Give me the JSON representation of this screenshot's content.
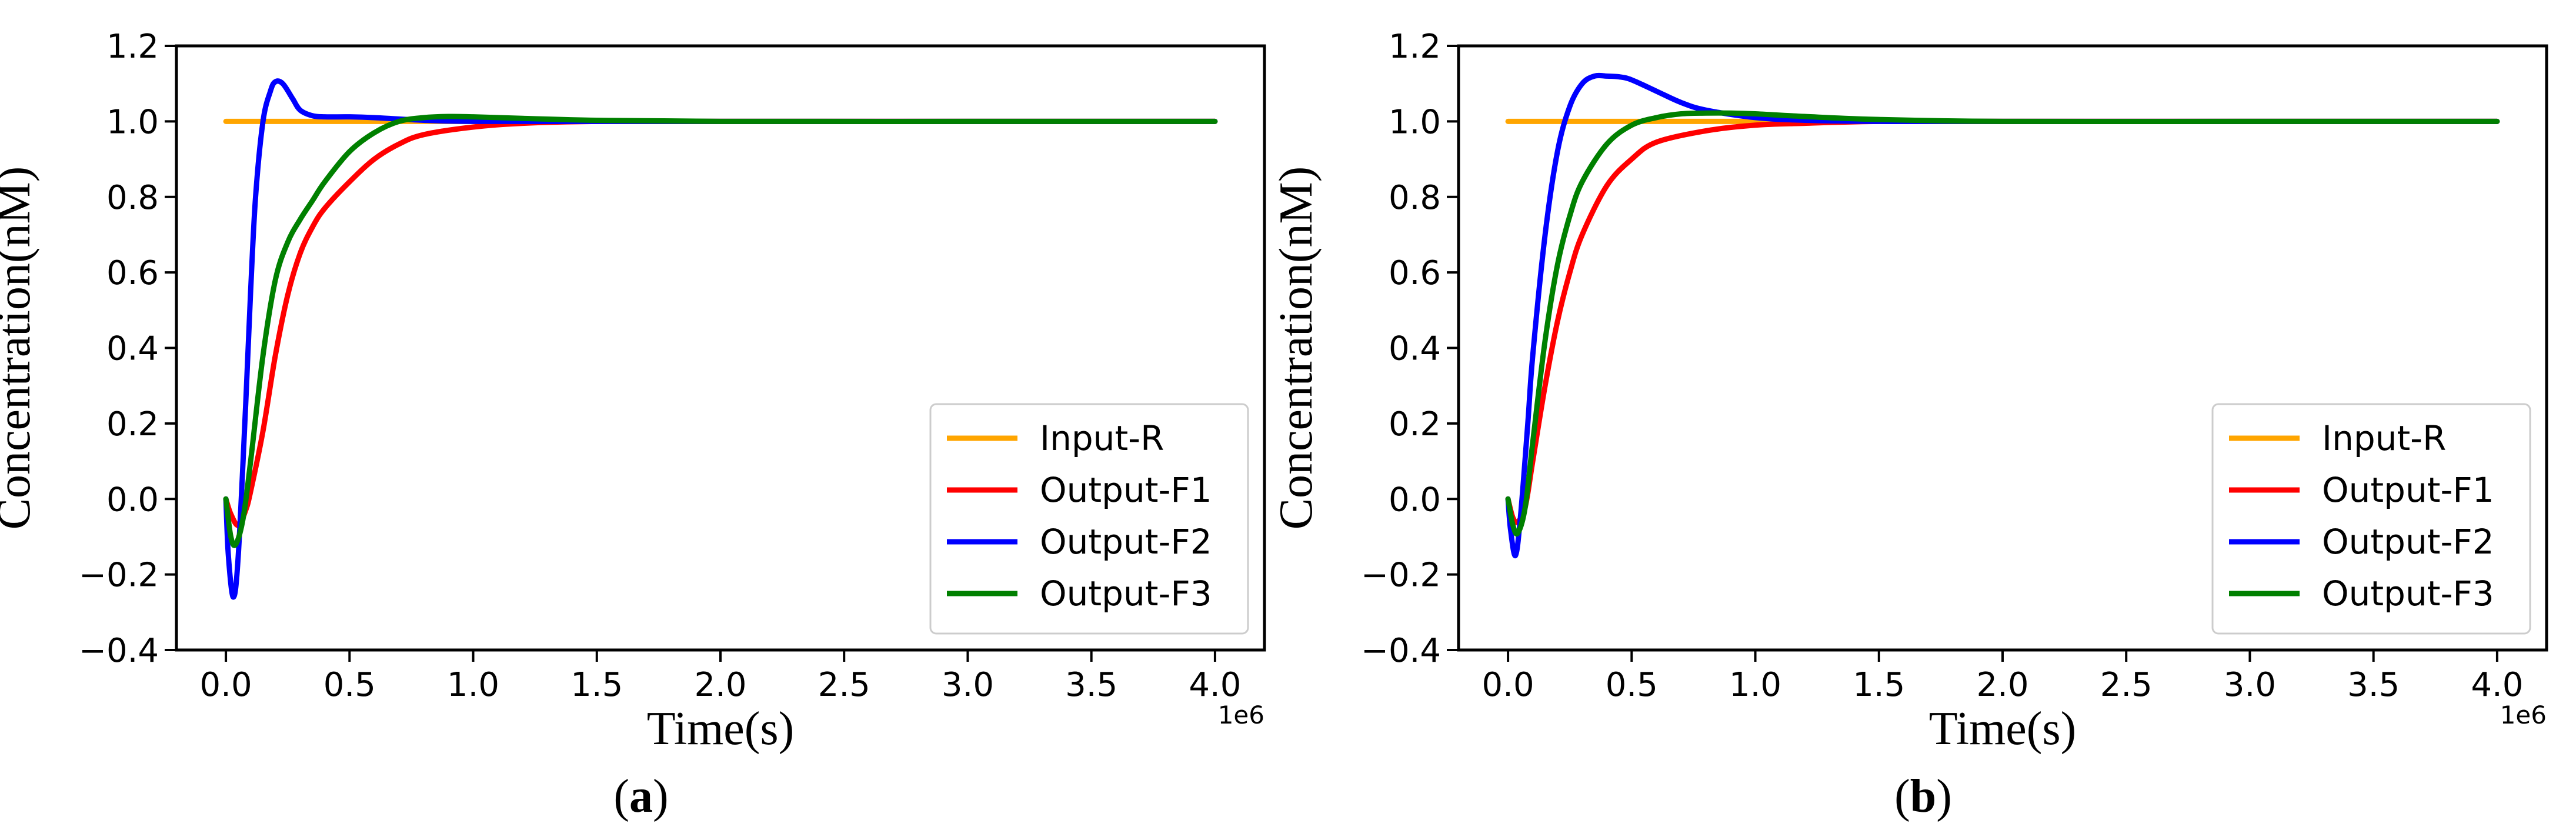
{
  "chart_data": [
    {
      "type": "line",
      "panel": "a",
      "caption_open": "(",
      "caption_letter": "a",
      "caption_close": ")",
      "xlabel": "Time(s)",
      "ylabel": "Concentration(nM)",
      "x_offset_label": "1e6",
      "xlim": [
        -0.2,
        4.2
      ],
      "ylim": [
        -0.4,
        1.2
      ],
      "xticks": [
        "0.0",
        "0.5",
        "1.0",
        "1.5",
        "2.0",
        "2.5",
        "3.0",
        "3.5",
        "4.0"
      ],
      "yticks": [
        "−0.4",
        "−0.2",
        "0.0",
        "0.2",
        "0.4",
        "0.6",
        "0.8",
        "1.0",
        "1.2"
      ],
      "legend_position": "lower-right",
      "series": [
        {
          "name": "Input-R",
          "color": "#FFA500",
          "x": [
            0.0,
            4.0
          ],
          "y": [
            1.0,
            1.0
          ]
        },
        {
          "name": "Output-F1",
          "color": "#FF0000",
          "x": [
            0.0,
            0.02,
            0.05,
            0.08,
            0.1,
            0.15,
            0.2,
            0.25,
            0.3,
            0.35,
            0.4,
            0.5,
            0.6,
            0.7,
            0.8,
            1.0,
            1.2,
            1.5,
            2.0,
            3.0,
            4.0
          ],
          "y": [
            0.0,
            -0.04,
            -0.07,
            -0.03,
            0.02,
            0.18,
            0.38,
            0.54,
            0.65,
            0.72,
            0.77,
            0.84,
            0.9,
            0.94,
            0.965,
            0.985,
            0.995,
            1.0,
            1.0,
            1.0,
            1.0
          ]
        },
        {
          "name": "Output-F2",
          "color": "#0000FF",
          "x": [
            0.0,
            0.01,
            0.03,
            0.05,
            0.08,
            0.1,
            0.12,
            0.15,
            0.18,
            0.2,
            0.23,
            0.27,
            0.3,
            0.35,
            0.4,
            0.5,
            0.6,
            0.8,
            1.0,
            1.5,
            2.0,
            3.0,
            4.0
          ],
          "y": [
            0.0,
            -0.15,
            -0.26,
            -0.15,
            0.25,
            0.55,
            0.8,
            1.0,
            1.08,
            1.105,
            1.1,
            1.06,
            1.03,
            1.015,
            1.012,
            1.012,
            1.01,
            1.003,
            1.0,
            1.0,
            1.0,
            1.0,
            1.0
          ]
        },
        {
          "name": "Output-F3",
          "color": "#008000",
          "x": [
            0.0,
            0.02,
            0.04,
            0.07,
            0.1,
            0.15,
            0.2,
            0.25,
            0.3,
            0.35,
            0.4,
            0.5,
            0.6,
            0.7,
            0.8,
            0.9,
            1.0,
            1.2,
            1.5,
            2.0,
            3.0,
            4.0
          ],
          "y": [
            0.0,
            -0.1,
            -0.12,
            -0.05,
            0.1,
            0.38,
            0.58,
            0.68,
            0.74,
            0.79,
            0.84,
            0.92,
            0.97,
            1.0,
            1.01,
            1.013,
            1.012,
            1.008,
            1.003,
            1.0,
            1.0,
            1.0
          ]
        }
      ]
    },
    {
      "type": "line",
      "panel": "b",
      "caption_open": "(",
      "caption_letter": "b",
      "caption_close": ")",
      "xlabel": "Time(s)",
      "ylabel": "Concentration(nM)",
      "x_offset_label": "1e6",
      "xlim": [
        -0.2,
        4.2
      ],
      "ylim": [
        -0.4,
        1.2
      ],
      "xticks": [
        "0.0",
        "0.5",
        "1.0",
        "1.5",
        "2.0",
        "2.5",
        "3.0",
        "3.5",
        "4.0"
      ],
      "yticks": [
        "−0.4",
        "−0.2",
        "0.0",
        "0.2",
        "0.4",
        "0.6",
        "0.8",
        "1.0",
        "1.2"
      ],
      "legend_position": "lower-right",
      "series": [
        {
          "name": "Input-R",
          "color": "#FFA500",
          "x": [
            0.0,
            4.0
          ],
          "y": [
            1.0,
            1.0
          ]
        },
        {
          "name": "Output-F1",
          "color": "#FF0000",
          "x": [
            0.0,
            0.02,
            0.04,
            0.07,
            0.1,
            0.15,
            0.2,
            0.25,
            0.3,
            0.4,
            0.5,
            0.6,
            0.8,
            1.0,
            1.2,
            1.5,
            2.0,
            3.0,
            4.0
          ],
          "y": [
            0.0,
            -0.05,
            -0.06,
            -0.02,
            0.1,
            0.3,
            0.47,
            0.6,
            0.7,
            0.83,
            0.9,
            0.945,
            0.975,
            0.99,
            0.995,
            1.0,
            1.0,
            1.0,
            1.0
          ]
        },
        {
          "name": "Output-F2",
          "color": "#0000FF",
          "x": [
            0.0,
            0.01,
            0.03,
            0.05,
            0.08,
            0.1,
            0.15,
            0.2,
            0.25,
            0.3,
            0.35,
            0.4,
            0.45,
            0.5,
            0.6,
            0.7,
            0.8,
            1.0,
            1.2,
            1.5,
            2.0,
            3.0,
            4.0
          ],
          "y": [
            0.0,
            -0.08,
            -0.15,
            -0.05,
            0.2,
            0.38,
            0.7,
            0.92,
            1.04,
            1.1,
            1.12,
            1.12,
            1.118,
            1.11,
            1.08,
            1.05,
            1.03,
            1.01,
            1.003,
            1.0,
            1.0,
            1.0,
            1.0
          ]
        },
        {
          "name": "Output-F3",
          "color": "#008000",
          "x": [
            0.0,
            0.02,
            0.04,
            0.07,
            0.1,
            0.15,
            0.2,
            0.25,
            0.3,
            0.4,
            0.5,
            0.6,
            0.7,
            0.8,
            0.9,
            1.0,
            1.2,
            1.5,
            2.0,
            3.0,
            4.0
          ],
          "y": [
            0.0,
            -0.07,
            -0.09,
            -0.02,
            0.15,
            0.42,
            0.62,
            0.75,
            0.84,
            0.94,
            0.99,
            1.01,
            1.02,
            1.022,
            1.022,
            1.02,
            1.013,
            1.005,
            1.0,
            1.0,
            1.0
          ]
        }
      ]
    }
  ]
}
